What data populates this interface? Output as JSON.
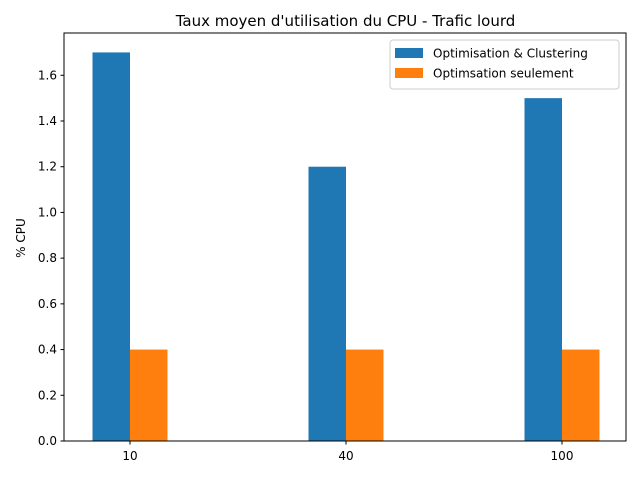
{
  "chart_data": {
    "type": "bar",
    "title": "Taux moyen d'utilisation du CPU - Trafic lourd",
    "xlabel": "",
    "ylabel": "% CPU",
    "categories": [
      "10",
      "40",
      "100"
    ],
    "series": [
      {
        "name": "Optimisation & Clustering",
        "values": [
          1.7,
          1.2,
          1.5
        ],
        "color": "#1f77b4"
      },
      {
        "name": "Optimsation seulement",
        "values": [
          0.4,
          0.4,
          0.4
        ],
        "color": "#ff7f0e"
      }
    ],
    "ylim": [
      0,
      1.785
    ],
    "yticks": [
      "0.0",
      "0.2",
      "0.4",
      "0.6",
      "0.8",
      "1.0",
      "1.2",
      "1.4",
      "1.6"
    ],
    "grid": false,
    "legend_position": "top-right"
  }
}
